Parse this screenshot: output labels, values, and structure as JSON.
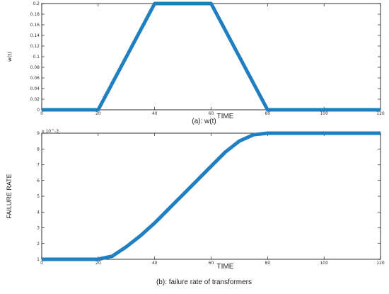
{
  "chart_data": [
    {
      "type": "line",
      "caption": "(a): w(t)",
      "xlabel": "TIME",
      "ylabel": "w(t)",
      "xlim": [
        0,
        120
      ],
      "ylim": [
        0,
        0.2
      ],
      "xticks": [
        "0",
        "20",
        "40",
        "60",
        "80",
        "100",
        "120"
      ],
      "yticks": [
        "0",
        "0.02",
        "0.04",
        "0.06",
        "0.08",
        "0.1",
        "0.12",
        "0.14",
        "0.16",
        "0.18",
        "0.2"
      ],
      "grid": false,
      "series": [
        {
          "color": "#1f7fc1",
          "x": [
            0,
            20,
            40,
            60,
            80,
            120
          ],
          "y": [
            0,
            0,
            0.2,
            0.2,
            0,
            0
          ]
        }
      ]
    },
    {
      "type": "line",
      "caption": "(b): failure rate of transformers",
      "xlabel": "TIME",
      "ylabel": "FAILURE RATE",
      "yscale_label": "x 10^-3",
      "xlim": [
        0,
        120
      ],
      "ylim": [
        1,
        9
      ],
      "xticks": [
        "0",
        "20",
        "40",
        "60",
        "80",
        "100",
        "120"
      ],
      "yticks": [
        "1",
        "2",
        "3",
        "4",
        "5",
        "6",
        "7",
        "8",
        "9"
      ],
      "grid": false,
      "series": [
        {
          "color": "#1f7fc1",
          "x": [
            0,
            20,
            25,
            30,
            35,
            40,
            45,
            50,
            55,
            60,
            65,
            70,
            75,
            80,
            100,
            120
          ],
          "y": [
            1,
            1,
            1.2,
            1.8,
            2.5,
            3.3,
            4.2,
            5.1,
            6.0,
            6.9,
            7.8,
            8.5,
            8.9,
            9,
            9,
            9
          ]
        }
      ]
    }
  ]
}
